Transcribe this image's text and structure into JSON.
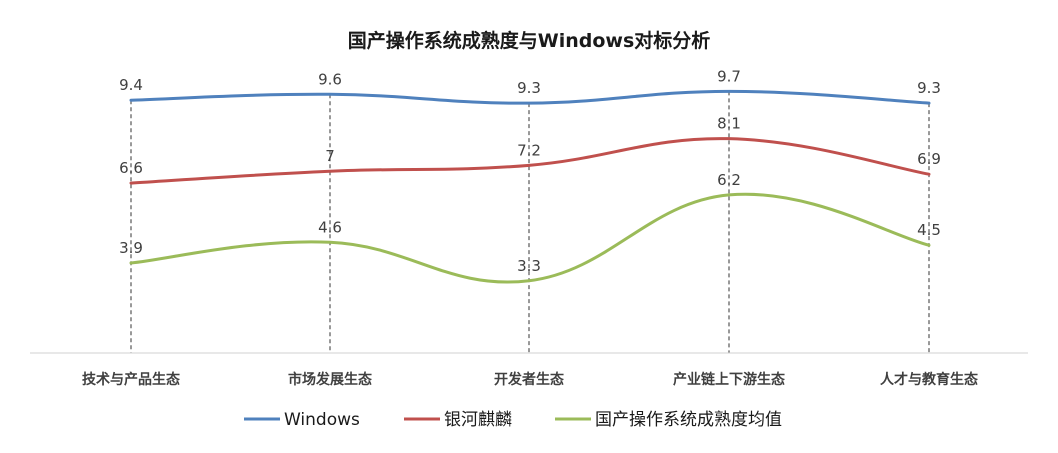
{
  "chart_data": {
    "type": "line",
    "title": "国产操作系统成熟度与Windows对标分析",
    "categories": [
      "技术与产品生态",
      "市场发展生态",
      "开发者生态",
      "产业链上下游生态",
      "人才与教育生态"
    ],
    "series": [
      {
        "name": "Windows",
        "values": [
          9.4,
          9.6,
          9.3,
          9.7,
          9.3
        ],
        "color": "#4f81bd",
        "labels": [
          "9.4",
          "9.6",
          "9.3",
          "9.7",
          "9.3"
        ]
      },
      {
        "name": "银河麒麟",
        "values": [
          6.6,
          7,
          7.2,
          8.1,
          6.9
        ],
        "color": "#c0504d",
        "labels": [
          "6.6",
          "7",
          "7.2",
          "8.1",
          "6.9"
        ]
      },
      {
        "name": "国产操作系统成熟度均值",
        "values": [
          3.9,
          4.6,
          3.3,
          6.2,
          4.5
        ],
        "color": "#9bbb59",
        "labels": [
          "3.9",
          "4.6",
          "3.3",
          "6.2",
          "4.5"
        ]
      }
    ],
    "ylim": [
      0,
      10
    ],
    "smooth": true,
    "grid": false,
    "drop_lines": true,
    "legend_position": "bottom"
  }
}
